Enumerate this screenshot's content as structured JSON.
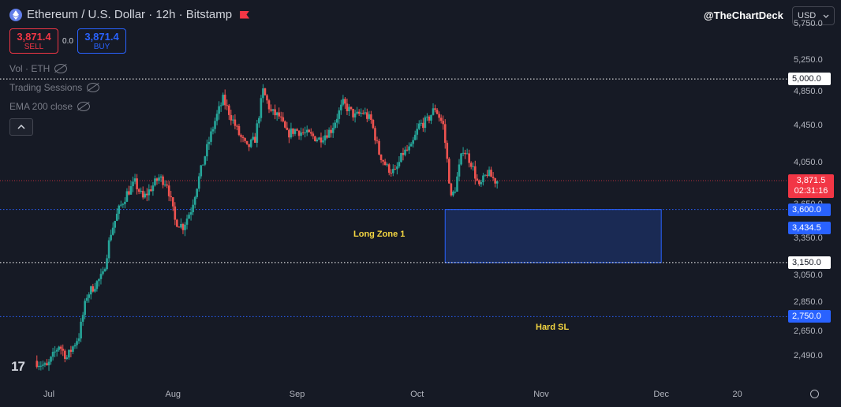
{
  "header": {
    "title": "Ethereum / U.S. Dollar · 12h · Bitstamp",
    "handle": "@TheChartDeck",
    "currency": "USD"
  },
  "trade": {
    "sell_price": "3,871.4",
    "sell_label": "SELL",
    "spread": "0.0",
    "buy_price": "3,871.4",
    "buy_label": "BUY"
  },
  "indicators": [
    {
      "label": "Vol · ETH"
    },
    {
      "label": "Trading Sessions"
    },
    {
      "label": "EMA 200 close"
    }
  ],
  "colors": {
    "background": "#161a25",
    "up": "#26a69a",
    "down": "#ef5350",
    "accent_blue": "#2962ff",
    "zone_label": "#f5d742"
  },
  "chart_data": {
    "type": "candlestick",
    "title": "Ethereum / U.S. Dollar · 12h · Bitstamp",
    "x_tick_labels": [
      "Jul",
      "Aug",
      "Sep",
      "Oct",
      "Nov",
      "Dec",
      "20"
    ],
    "y_tick_labels": [
      "5,750.0",
      "5,250.0",
      "4,850.0",
      "4,450.0",
      "4,050.0",
      "3,650.0",
      "3,350.0",
      "3,050.0",
      "2,850.0",
      "2,650.0",
      "2,490.0"
    ],
    "y_scale": "log",
    "ylim": [
      2320,
      6100
    ],
    "price_path": [
      [
        "2025-06-28",
        2460
      ],
      [
        "2025-07-01",
        2420
      ],
      [
        "2025-07-04",
        2560
      ],
      [
        "2025-07-06",
        2480
      ],
      [
        "2025-07-09",
        2620
      ],
      [
        "2025-07-11",
        2900
      ],
      [
        "2025-07-13",
        2980
      ],
      [
        "2025-07-15",
        3050
      ],
      [
        "2025-07-17",
        3400
      ],
      [
        "2025-07-19",
        3600
      ],
      [
        "2025-07-21",
        3750
      ],
      [
        "2025-07-23",
        3850
      ],
      [
        "2025-07-25",
        3700
      ],
      [
        "2025-07-27",
        3800
      ],
      [
        "2025-07-29",
        3900
      ],
      [
        "2025-07-31",
        3850
      ],
      [
        "2025-08-02",
        3500
      ],
      [
        "2025-08-04",
        3450
      ],
      [
        "2025-08-06",
        3600
      ],
      [
        "2025-08-08",
        3900
      ],
      [
        "2025-08-10",
        4200
      ],
      [
        "2025-08-12",
        4500
      ],
      [
        "2025-08-14",
        4750
      ],
      [
        "2025-08-16",
        4550
      ],
      [
        "2025-08-18",
        4350
      ],
      [
        "2025-08-20",
        4200
      ],
      [
        "2025-08-22",
        4300
      ],
      [
        "2025-08-24",
        4850
      ],
      [
        "2025-08-26",
        4600
      ],
      [
        "2025-08-28",
        4550
      ],
      [
        "2025-08-30",
        4350
      ],
      [
        "2025-09-01",
        4400
      ],
      [
        "2025-09-04",
        4350
      ],
      [
        "2025-09-07",
        4300
      ],
      [
        "2025-09-10",
        4400
      ],
      [
        "2025-09-13",
        4700
      ],
      [
        "2025-09-16",
        4550
      ],
      [
        "2025-09-18",
        4600
      ],
      [
        "2025-09-20",
        4500
      ],
      [
        "2025-09-22",
        4150
      ],
      [
        "2025-09-24",
        4000
      ],
      [
        "2025-09-26",
        3950
      ],
      [
        "2025-09-28",
        4150
      ],
      [
        "2025-09-30",
        4200
      ],
      [
        "2025-10-02",
        4450
      ],
      [
        "2025-10-04",
        4500
      ],
      [
        "2025-10-06",
        4650
      ],
      [
        "2025-10-08",
        4450
      ],
      [
        "2025-10-10",
        3700
      ],
      [
        "2025-10-11",
        3800
      ],
      [
        "2025-10-13",
        4200
      ],
      [
        "2025-10-15",
        4050
      ],
      [
        "2025-10-17",
        3800
      ],
      [
        "2025-10-19",
        3950
      ],
      [
        "2025-10-21",
        3871.5
      ]
    ],
    "last_price": {
      "value": "3,871.5",
      "countdown": "02:31:16"
    },
    "levels": [
      {
        "price": 5000.0,
        "label": "5,000.0",
        "style": "white",
        "tag": "white"
      },
      {
        "price": 3600.0,
        "label": "3,600.0",
        "style": "blue-dotted",
        "tag": "blue"
      },
      {
        "price": 3434.5,
        "label": "3,434.5",
        "style": "none",
        "tag": "blue"
      },
      {
        "price": 3150.0,
        "label": "3,150.0",
        "style": "white",
        "tag": "white"
      },
      {
        "price": 2750.0,
        "label": "2,750.0",
        "style": "blue-dotted",
        "tag": "blue"
      }
    ],
    "zones": [
      {
        "name": "Long Zone 1",
        "from_date": "2025-10-08",
        "to_date": "2025-12-01",
        "top": 3600,
        "bottom": 3150
      }
    ],
    "annotations": [
      {
        "text": "Long Zone 1"
      },
      {
        "text": "Hard SL"
      }
    ]
  }
}
